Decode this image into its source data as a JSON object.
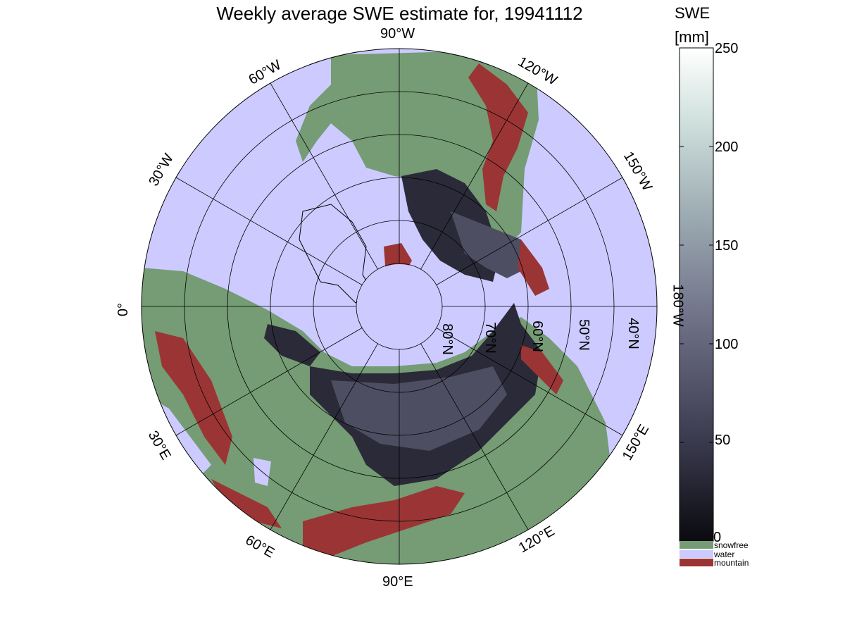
{
  "title": "Weekly average SWE estimate for, 19941112",
  "longitude_labels": [
    {
      "text": "90°W",
      "lon": -90
    },
    {
      "text": "120°W",
      "lon": -120
    },
    {
      "text": "150°W",
      "lon": -150
    },
    {
      "text": "180°W",
      "lon": 180
    },
    {
      "text": "150°E",
      "lon": 150
    },
    {
      "text": "120°E",
      "lon": 120
    },
    {
      "text": "90°E",
      "lon": 90
    },
    {
      "text": "60°E",
      "lon": 60
    },
    {
      "text": "30°E",
      "lon": 30
    },
    {
      "text": "0°",
      "lon": 0
    },
    {
      "text": "30°W",
      "lon": -30
    },
    {
      "text": "60°W",
      "lon": -60
    }
  ],
  "latitude_labels": [
    {
      "text": "80°N",
      "lat": 80
    },
    {
      "text": "70°N",
      "lat": 70
    },
    {
      "text": "60°N",
      "lat": 60
    },
    {
      "text": "50°N",
      "lat": 50
    },
    {
      "text": "40°N",
      "lat": 40
    }
  ],
  "colorbar": {
    "title_line1": "SWE",
    "title_line2": "[mm]",
    "min": 0,
    "max": 250,
    "ticks": [
      0,
      50,
      100,
      150,
      200,
      250
    ],
    "tick_labels": [
      "0",
      "50",
      "100",
      "150",
      "200",
      "250"
    ],
    "colors_low_to_high": [
      "#0a0a0f",
      "#3a3a4e",
      "#6f7188",
      "#9aa8b0",
      "#cfe0dc",
      "#ffffff"
    ]
  },
  "legend": [
    {
      "label": "snowfree",
      "color": "#759c74"
    },
    {
      "label": "water",
      "color": "#cccaff"
    },
    {
      "label": "mountain",
      "color": "#9b3535"
    }
  ],
  "colors": {
    "water": "#cccaff",
    "snowfree": "#759c74",
    "mountain": "#9b3535",
    "snow_dark": "#2b2a38",
    "snow_mid": "#4e4e63"
  }
}
